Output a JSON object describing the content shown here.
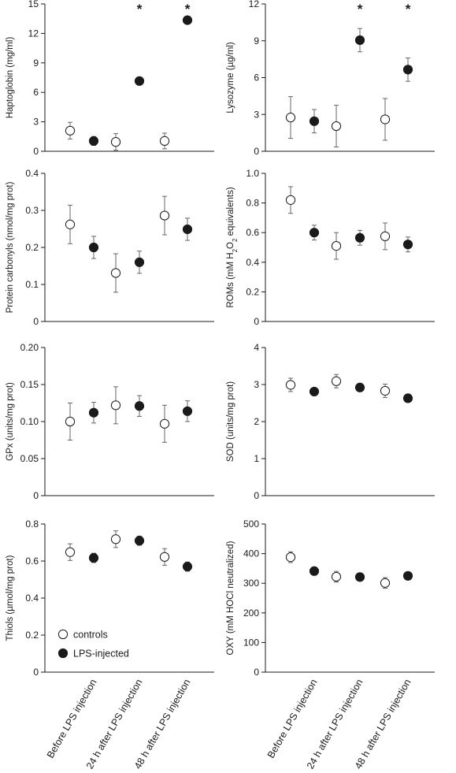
{
  "chart_data": {
    "type": "scatter",
    "categories": [
      "Before LPS injection",
      "24 h after LPS injection",
      "48 h after LPS injection"
    ],
    "legend": {
      "position": "bottom-left of Thiols panel",
      "entries": [
        {
          "label": "controls",
          "marker": "open-circle"
        },
        {
          "label": "LPS-injected",
          "marker": "filled-circle"
        }
      ]
    },
    "marker_colors": {
      "controls_fill": "#ffffff",
      "lps_fill": "#1a1a1a",
      "stroke": "#1a1a1a",
      "error_bar": "#666666"
    },
    "panels": [
      {
        "ylabel": "Haptoglobin (mg/ml)",
        "ylim": [
          0,
          15
        ],
        "yticks": [
          0,
          3,
          6,
          9,
          12,
          15
        ],
        "series": [
          {
            "name": "controls",
            "values": [
              2.1,
              0.95,
              1.05
            ],
            "errors": [
              0.85,
              0.85,
              0.8
            ]
          },
          {
            "name": "LPS-injected",
            "values": [
              1.05,
              7.15,
              13.35
            ],
            "errors": [
              0.45,
              0.35,
              0.4
            ]
          }
        ],
        "significance": [
          "",
          "*",
          "*"
        ]
      },
      {
        "ylabel": "Lysozyme (µg/ml)",
        "ylim": [
          0,
          12
        ],
        "yticks": [
          0,
          3,
          6,
          9,
          12
        ],
        "series": [
          {
            "name": "controls",
            "values": [
              2.75,
              2.05,
              2.6
            ],
            "errors": [
              1.7,
              1.7,
              1.7
            ]
          },
          {
            "name": "LPS-injected",
            "values": [
              2.45,
              9.05,
              6.65
            ],
            "errors": [
              0.95,
              0.95,
              0.95
            ]
          }
        ],
        "significance": [
          "",
          "*",
          "*"
        ]
      },
      {
        "ylabel": "Protein carbonyls (nmol/mg prot)",
        "ylim": [
          0,
          0.4
        ],
        "yticks": [
          "0",
          "0.1",
          "0.2",
          "0.3",
          "0.4"
        ],
        "series": [
          {
            "name": "controls",
            "values": [
              0.262,
              0.131,
              0.286
            ],
            "errors": [
              0.052,
              0.052,
              0.052
            ]
          },
          {
            "name": "LPS-injected",
            "values": [
              0.2,
              0.16,
              0.249
            ],
            "errors": [
              0.03,
              0.03,
              0.03
            ]
          }
        ]
      },
      {
        "ylabel": "ROMs (mM H2O2 equivalents)",
        "ylim": [
          0,
          1.0
        ],
        "yticks": [
          "0",
          "0.2",
          "0.4",
          "0.6",
          "0.8",
          "1.0"
        ],
        "series": [
          {
            "name": "controls",
            "values": [
              0.82,
              0.51,
              0.575
            ],
            "errors": [
              0.09,
              0.09,
              0.09
            ]
          },
          {
            "name": "LPS-injected",
            "values": [
              0.6,
              0.565,
              0.52
            ],
            "errors": [
              0.05,
              0.05,
              0.05
            ]
          }
        ]
      },
      {
        "ylabel": "GPx (units/mg prot)",
        "ylim": [
          0,
          0.2
        ],
        "yticks": [
          "0",
          "0.05",
          "0.10",
          "0.15",
          "0.20"
        ],
        "series": [
          {
            "name": "controls",
            "values": [
              0.1,
              0.122,
              0.097
            ],
            "errors": [
              0.025,
              0.025,
              0.025
            ]
          },
          {
            "name": "LPS-injected",
            "values": [
              0.112,
              0.121,
              0.114
            ],
            "errors": [
              0.014,
              0.014,
              0.014
            ]
          }
        ]
      },
      {
        "ylabel": "SOD (units/mg prot)",
        "ylim": [
          0,
          4
        ],
        "yticks": [
          "0",
          "1",
          "2",
          "3",
          "4"
        ],
        "series": [
          {
            "name": "controls",
            "values": [
              2.99,
              3.09,
              2.83
            ],
            "errors": [
              0.18,
              0.18,
              0.18
            ]
          },
          {
            "name": "LPS-injected",
            "values": [
              2.81,
              2.92,
              2.63
            ],
            "errors": [
              0.08,
              0.08,
              0.08
            ]
          }
        ]
      },
      {
        "ylabel": "Thiols (µmol/mg prot)",
        "ylim": [
          0,
          0.8
        ],
        "yticks": [
          "0",
          "0.2",
          "0.4",
          "0.6",
          "0.8"
        ],
        "series": [
          {
            "name": "controls",
            "values": [
              0.648,
              0.718,
              0.622
            ],
            "errors": [
              0.045,
              0.045,
              0.045
            ]
          },
          {
            "name": "LPS-injected",
            "values": [
              0.617,
              0.71,
              0.57
            ],
            "errors": [
              0.025,
              0.025,
              0.025
            ]
          }
        ]
      },
      {
        "ylabel": "OXY (mM HOCl neutralized)",
        "ylim": [
          0,
          500
        ],
        "yticks": [
          "0",
          "100",
          "200",
          "300",
          "400",
          "500"
        ],
        "series": [
          {
            "name": "controls",
            "values": [
              388,
              322,
              301
            ],
            "errors": [
              18,
              18,
              18
            ]
          },
          {
            "name": "LPS-injected",
            "values": [
              341,
              321,
              325
            ],
            "errors": [
              6,
              6,
              6
            ]
          }
        ]
      }
    ]
  }
}
